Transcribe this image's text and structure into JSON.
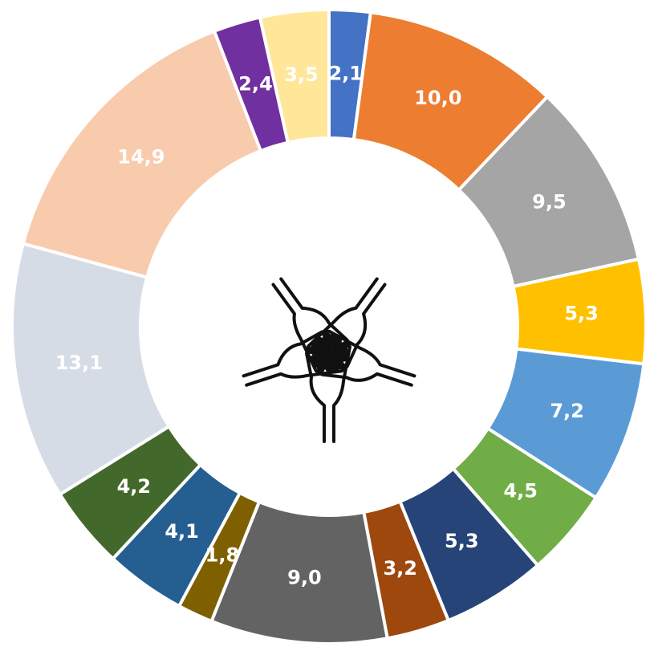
{
  "chart_data": {
    "type": "donut",
    "values": [
      2.1,
      10.0,
      9.5,
      5.3,
      7.2,
      4.5,
      5.3,
      3.2,
      9.0,
      1.8,
      4.1,
      4.2,
      13.1,
      14.9,
      2.4,
      3.5
    ],
    "value_labels": [
      "2,1",
      "10,0",
      "9,5",
      "5,3",
      "7,2",
      "4,5",
      "5,3",
      "3,2",
      "9,0",
      "1,8",
      "4,1",
      "4,2",
      "13,1",
      "14,9",
      "2,4",
      "3,5"
    ],
    "colors": [
      "#4472c4",
      "#ed7d31",
      "#a5a5a5",
      "#ffc000",
      "#5b9bd5",
      "#70ad47",
      "#264478",
      "#9e480e",
      "#636363",
      "#7f6000",
      "#255e91",
      "#43682b",
      "#d6dce5",
      "#f8cbad",
      "#7030a0",
      "#ffe699"
    ]
  }
}
